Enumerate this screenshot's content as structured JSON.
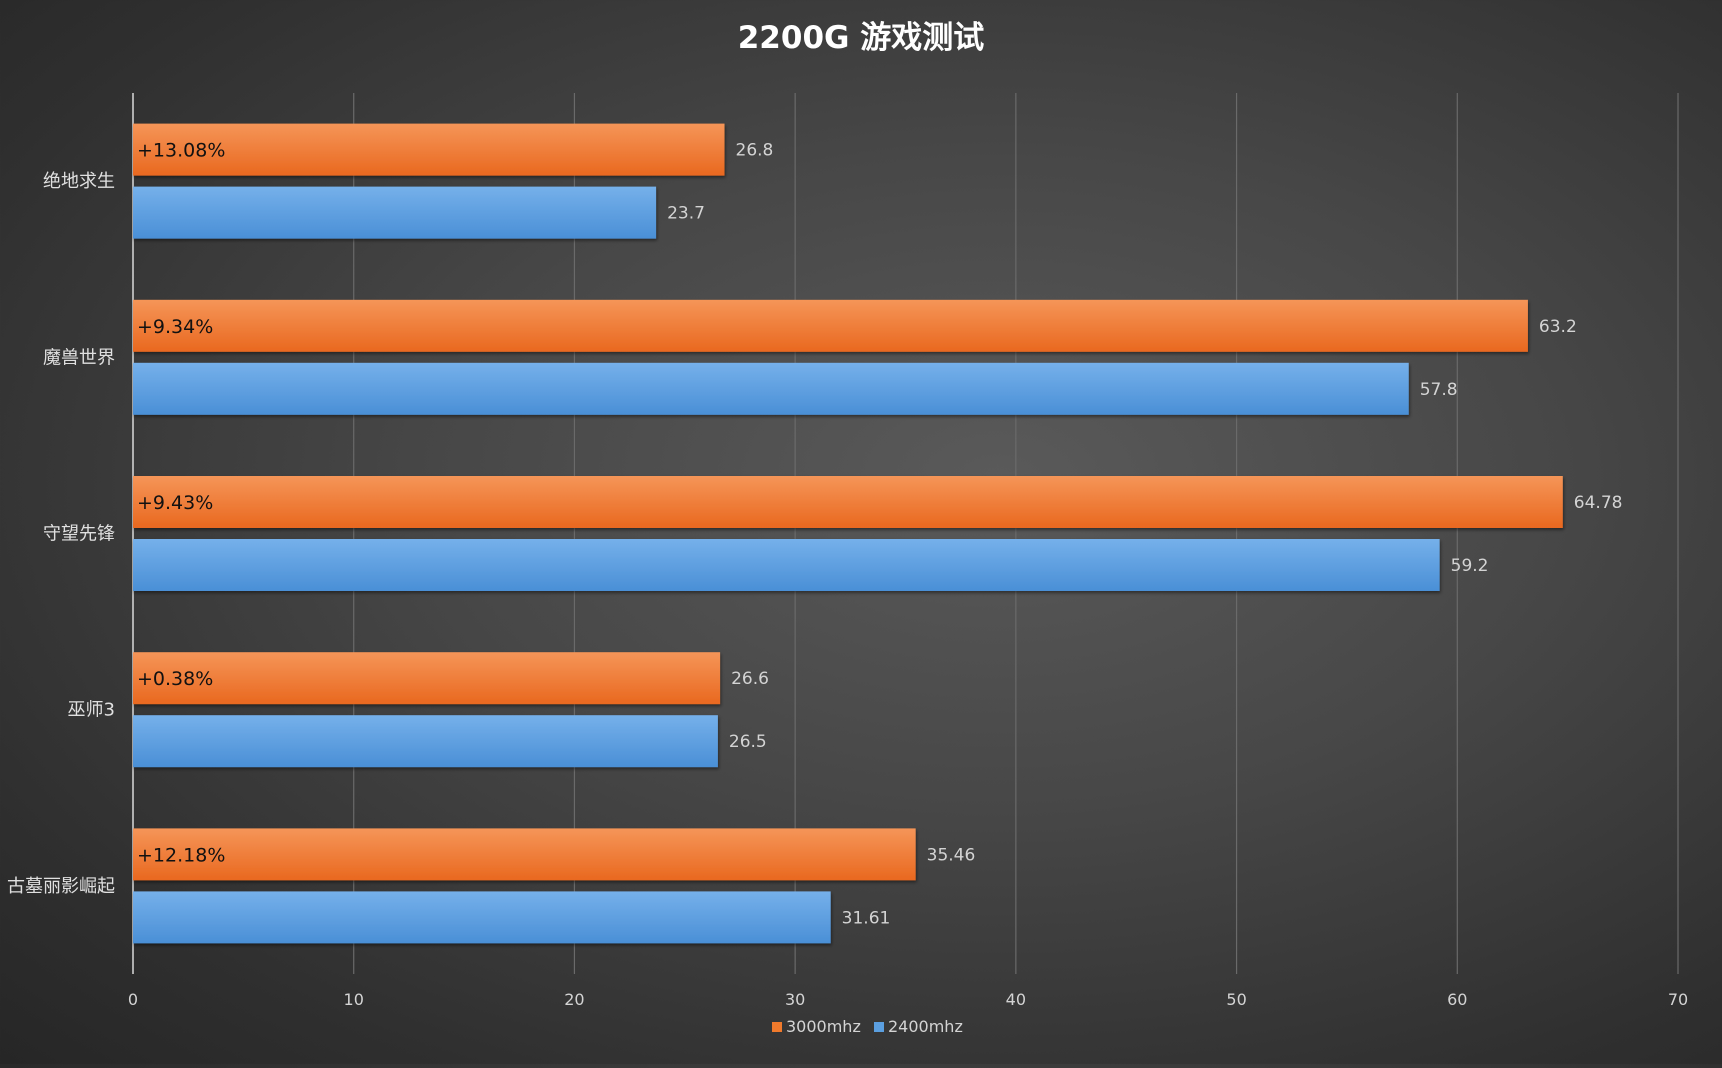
{
  "chart_data": {
    "type": "bar",
    "orientation": "horizontal",
    "title": "2200G 游戏测试",
    "categories": [
      "绝地求生",
      "魔兽世界",
      "守望先锋",
      "巫师3",
      "古墓丽影崛起"
    ],
    "series": [
      {
        "name": "3000mhz",
        "color": "#f07a2c",
        "values": [
          26.8,
          63.2,
          64.78,
          26.6,
          35.46
        ]
      },
      {
        "name": "2400mhz",
        "color": "#5b9fe0",
        "values": [
          23.7,
          57.8,
          59.2,
          26.5,
          31.61
        ]
      }
    ],
    "value_labels": [
      [
        "26.8",
        "63.2",
        "64.78",
        "26.6",
        "35.46"
      ],
      [
        "23.7",
        "57.8",
        "59.2",
        "26.5",
        "31.61"
      ]
    ],
    "annotations": [
      "+13.08%",
      "+9.34%",
      "+9.43%",
      "+0.38%",
      "+12.18%"
    ],
    "xlim": [
      0,
      70
    ],
    "xticks": [
      0,
      10,
      20,
      30,
      40,
      50,
      60,
      70
    ],
    "xtick_labels": [
      "0",
      "10",
      "20",
      "30",
      "40",
      "50",
      "60",
      "70"
    ],
    "xlabel": "",
    "ylabel": "",
    "grid": "vertical",
    "legend": "bottom-center"
  }
}
